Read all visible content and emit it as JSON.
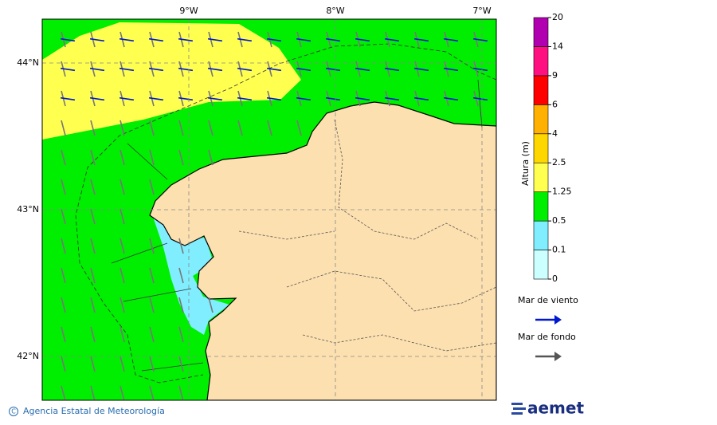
{
  "map": {
    "xticks": [
      {
        "value": -9,
        "label": "9°W"
      },
      {
        "value": -8,
        "label": "8°W"
      },
      {
        "value": -7,
        "label": "7°W"
      }
    ],
    "yticks": [
      {
        "value": 44,
        "label": "44°N"
      },
      {
        "value": 43,
        "label": "43°N"
      },
      {
        "value": 42,
        "label": "42°N"
      }
    ],
    "colorbar": {
      "title": "Altura (m)",
      "levels": [
        0,
        0.1,
        0.5,
        1.25,
        2.5,
        4,
        6,
        9,
        14,
        20
      ],
      "colors": [
        "#ccffff",
        "#80eeff",
        "#00ee00",
        "#ffff50",
        "#ffd700",
        "#ffb000",
        "#ff0000",
        "#ff1080",
        "#b000b0"
      ]
    },
    "legend": [
      {
        "name": "Mar de viento",
        "color": "#0018d0"
      },
      {
        "name": "Mar de fondo",
        "color": "#555555"
      }
    ],
    "footer": {
      "credit": "Agencia Estatal de Meteorología",
      "logo": "aemet"
    }
  }
}
